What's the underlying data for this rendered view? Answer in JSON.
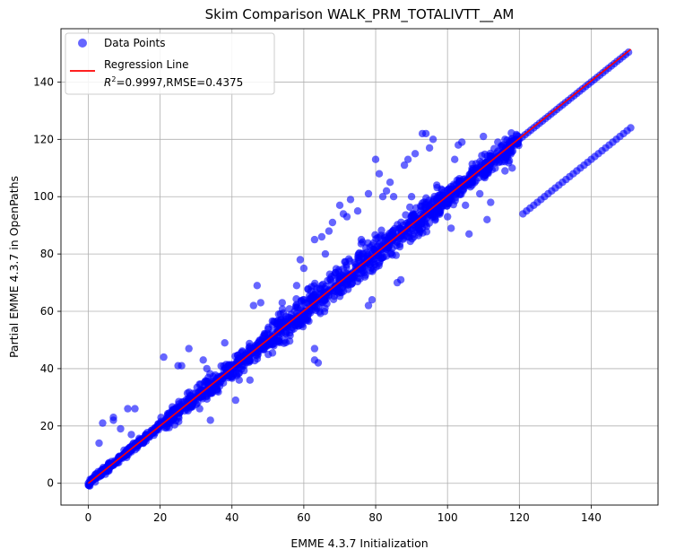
{
  "chart_data": {
    "type": "scatter",
    "title": "Skim Comparison WALK_PRM_TOTALIVTT__AM",
    "xlabel": "EMME 4.3.7 Initialization",
    "ylabel": "Partial EMME 4.3.7 in OpenPaths",
    "xlim": [
      -7.6,
      158.6
    ],
    "ylim": [
      -7.6,
      158.6
    ],
    "xticks": [
      0,
      20,
      40,
      60,
      80,
      100,
      120,
      140
    ],
    "yticks": [
      0,
      20,
      40,
      60,
      80,
      100,
      120,
      140
    ],
    "grid": true,
    "legend_position": "top-left",
    "series": [
      {
        "name": "Data Points",
        "kind": "scatter",
        "color": "#0000ff",
        "alpha": 0.6
      },
      {
        "name": "Regression Line",
        "kind": "line",
        "color": "#ff0000",
        "x": [
          0,
          151
        ],
        "y": [
          0,
          151.4
        ]
      }
    ],
    "regression_stats": {
      "r2_label": "R",
      "r2_exp": "2",
      "r2_rest": "=0.9997,RMSE=0.4375"
    },
    "points": {
      "diagonal": {
        "x_min": 0,
        "x_max": 151
      },
      "bands": [
        {
          "x_min": 0,
          "x_max": 20,
          "spread": 2
        },
        {
          "x_min": 20,
          "x_max": 50,
          "spread": 5
        },
        {
          "x_min": 50,
          "x_max": 100,
          "spread": 9
        },
        {
          "x_min": 100,
          "x_max": 120,
          "spread": 6
        }
      ],
      "outlier_branch": {
        "x": [
          121,
          151
        ],
        "y": [
          94,
          124
        ]
      },
      "extras": [
        [
          3,
          14
        ],
        [
          4,
          21
        ],
        [
          7,
          23
        ],
        [
          7,
          22
        ],
        [
          9,
          19
        ],
        [
          11,
          26
        ],
        [
          13,
          26
        ],
        [
          12,
          17
        ],
        [
          21,
          44
        ],
        [
          25,
          41
        ],
        [
          26,
          41
        ],
        [
          28,
          47
        ],
        [
          31,
          26
        ],
        [
          32,
          43
        ],
        [
          33,
          40
        ],
        [
          34,
          22
        ],
        [
          38,
          49
        ],
        [
          41,
          29
        ],
        [
          42,
          36
        ],
        [
          45,
          36
        ],
        [
          46,
          62
        ],
        [
          47,
          69
        ],
        [
          48,
          63
        ],
        [
          50,
          48
        ],
        [
          53,
          59
        ],
        [
          54,
          63
        ],
        [
          58,
          69
        ],
        [
          59,
          78
        ],
        [
          60,
          75
        ],
        [
          61,
          63
        ],
        [
          62,
          67
        ],
        [
          63,
          47
        ],
        [
          63,
          43
        ],
        [
          64,
          42
        ],
        [
          63,
          85
        ],
        [
          65,
          86
        ],
        [
          66,
          80
        ],
        [
          67,
          88
        ],
        [
          68,
          91
        ],
        [
          70,
          97
        ],
        [
          71,
          94
        ],
        [
          72,
          93
        ],
        [
          73,
          99
        ],
        [
          75,
          95
        ],
        [
          76,
          85
        ],
        [
          77,
          76
        ],
        [
          77,
          72
        ],
        [
          78,
          101
        ],
        [
          78,
          62
        ],
        [
          79,
          64
        ],
        [
          80,
          113
        ],
        [
          81,
          108
        ],
        [
          82,
          100
        ],
        [
          83,
          102
        ],
        [
          84,
          105
        ],
        [
          85,
          100
        ],
        [
          86,
          84
        ],
        [
          86,
          70
        ],
        [
          87,
          71
        ],
        [
          88,
          111
        ],
        [
          89,
          113
        ],
        [
          90,
          100
        ],
        [
          91,
          115
        ],
        [
          93,
          122
        ],
        [
          94,
          122
        ],
        [
          95,
          117
        ],
        [
          96,
          120
        ],
        [
          97,
          104
        ],
        [
          98,
          95
        ],
        [
          100,
          93
        ],
        [
          101,
          89
        ],
        [
          102,
          113
        ],
        [
          103,
          118
        ],
        [
          104,
          119
        ],
        [
          105,
          97
        ],
        [
          106,
          87
        ],
        [
          107,
          105
        ],
        [
          108,
          110
        ],
        [
          109,
          101
        ],
        [
          110,
          121
        ],
        [
          111,
          92
        ],
        [
          112,
          98
        ],
        [
          114,
          119
        ],
        [
          116,
          109
        ],
        [
          118,
          110
        ],
        [
          116,
          120
        ]
      ]
    }
  }
}
